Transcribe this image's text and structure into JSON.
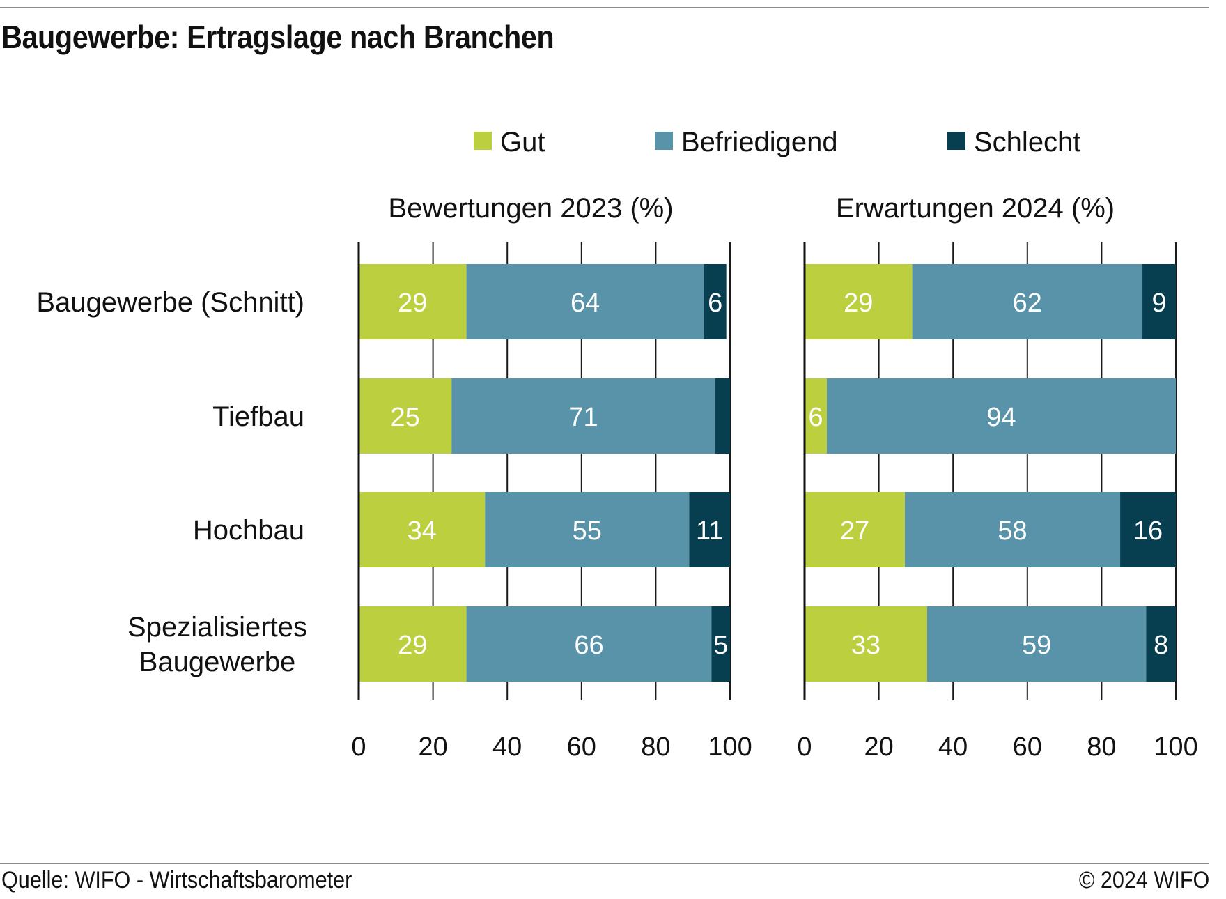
{
  "title": "Baugewerbe: Ertragslage nach Branchen",
  "source": "Quelle: WIFO - Wirtschaftsbarometer",
  "copyright": "© 2024 WIFO",
  "colors": {
    "gut": "#bccf3f",
    "befriedigend": "#5993aa",
    "schlecht": "#073f51",
    "label_on_light": "#ffffff"
  },
  "chart_data": {
    "type": "bar",
    "orientation": "horizontal",
    "stacked": true,
    "legend": {
      "placement": "top",
      "items": [
        {
          "name": "Gut",
          "color": "#bccf3f"
        },
        {
          "name": "Befriedigend",
          "color": "#5993aa"
        },
        {
          "name": "Schlecht",
          "color": "#073f51"
        }
      ]
    },
    "categories": [
      {
        "label_lines": [
          "Baugewerbe (Schnitt)"
        ]
      },
      {
        "label_lines": [
          "Tiefbau"
        ]
      },
      {
        "label_lines": [
          "Hochbau"
        ]
      },
      {
        "label_lines": [
          "Spezialisiertes",
          "Baugewerbe"
        ]
      }
    ],
    "panels": [
      {
        "title": "Bewertungen 2023 (%)",
        "xlim": [
          0,
          100
        ],
        "xticks": [
          0,
          20,
          40,
          60,
          80,
          100
        ],
        "grid": true,
        "series": [
          {
            "name": "Gut",
            "values": [
              29,
              25,
              34,
              29
            ],
            "labels": [
              "29",
              "25",
              "34",
              "29"
            ]
          },
          {
            "name": "Befriedigend",
            "values": [
              64,
              71,
              55,
              66
            ],
            "labels": [
              "64",
              "71",
              "55",
              "66"
            ]
          },
          {
            "name": "Schlecht",
            "values": [
              6,
              4.5,
              11,
              5
            ],
            "labels": [
              "6",
              "",
              "11",
              "5"
            ]
          }
        ]
      },
      {
        "title": "Erwartungen 2024 (%)",
        "xlim": [
          0,
          100
        ],
        "xticks": [
          0,
          20,
          40,
          60,
          80,
          100
        ],
        "grid": true,
        "series": [
          {
            "name": "Gut",
            "values": [
              29,
              6,
              27,
              33
            ],
            "labels": [
              "29",
              "6",
              "27",
              "33"
            ]
          },
          {
            "name": "Befriedigend",
            "values": [
              62,
              94,
              58,
              59
            ],
            "labels": [
              "62",
              "94",
              "58",
              "59"
            ]
          },
          {
            "name": "Schlecht",
            "values": [
              9,
              0,
              16,
              8
            ],
            "labels": [
              "9",
              "",
              "16",
              "8"
            ]
          }
        ]
      }
    ]
  }
}
